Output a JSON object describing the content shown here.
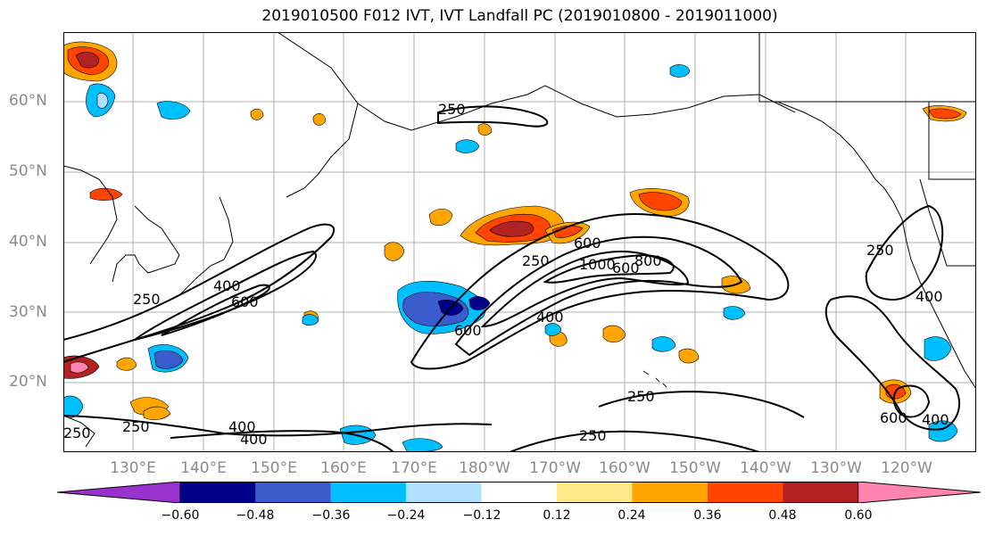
{
  "title": "2019010500 F012 IVT, IVT Landfall PC (2019010800 - 2019011000)",
  "lat_labels": [
    "60°N",
    "50°N",
    "40°N",
    "30°N",
    "20°N"
  ],
  "lon_labels": [
    "130°E",
    "140°E",
    "150°E",
    "160°E",
    "170°E",
    "180°W",
    "170°W",
    "160°W",
    "150°W",
    "140°W",
    "130°W",
    "120°W"
  ],
  "contour_labels": [
    "250",
    "400",
    "600",
    "250",
    "400",
    "600",
    "250",
    "600",
    "800",
    "1000",
    "250",
    "400",
    "600",
    "250",
    "250",
    "400",
    "400",
    "250",
    "600",
    "400",
    "250"
  ],
  "colorbar": {
    "ticks": [
      "−0.60",
      "−0.48",
      "−0.36",
      "−0.24",
      "−0.12",
      "0.12",
      "0.24",
      "0.36",
      "0.48",
      "0.60"
    ],
    "colors": [
      "#9932cc",
      "#00008b",
      "#3a5ccc",
      "#00bfff",
      "#b0e0ff",
      "#ffffff",
      "#ffe88a",
      "#ffa500",
      "#ff4500",
      "#b22222",
      "#ff85b0"
    ]
  }
}
